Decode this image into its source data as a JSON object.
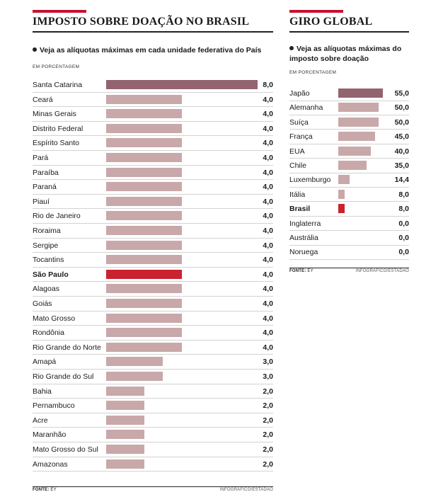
{
  "chart_data": [
    {
      "type": "bar",
      "orientation": "horizontal",
      "title": "IMPOSTO SOBRE DOAÇÃO NO BRASIL",
      "subtitle": "Veja as alíquotas máximas em cada unidade federativa do País",
      "unit": "EM PORCENTAGEM",
      "source_label": "FONTE:",
      "source": "EY",
      "credit": "INFOGRÁFICO/ESTADÃO",
      "xlim": [
        0,
        8
      ],
      "highlight": "São Paulo",
      "top_item": "Santa Catarina",
      "colors": {
        "top": "#93636f",
        "highlight": "#c8232f",
        "default": "#c9a8aa"
      },
      "categories": [
        "Santa Catarina",
        "Ceará",
        "Minas Gerais",
        "Distrito Federal",
        "Espírito Santo",
        "Pará",
        "Paraíba",
        "Paraná",
        "Piauí",
        "Rio de Janeiro",
        "Roraima",
        "Sergipe",
        "Tocantins",
        "São Paulo",
        "Alagoas",
        "Goiás",
        "Mato Grosso",
        "Rondônia",
        "Rio Grande do Norte",
        "Amapá",
        "Rio Grande do Sul",
        "Bahia",
        "Pernambuco",
        "Acre",
        "Maranhão",
        "Mato Grosso do Sul",
        "Amazonas"
      ],
      "values": [
        8.0,
        4.0,
        4.0,
        4.0,
        4.0,
        4.0,
        4.0,
        4.0,
        4.0,
        4.0,
        4.0,
        4.0,
        4.0,
        4.0,
        4.0,
        4.0,
        4.0,
        4.0,
        4.0,
        3.0,
        3.0,
        2.0,
        2.0,
        2.0,
        2.0,
        2.0,
        2.0
      ],
      "value_labels": [
        "8,0",
        "4,0",
        "4,0",
        "4,0",
        "4,0",
        "4,0",
        "4,0",
        "4,0",
        "4,0",
        "4,0",
        "4,0",
        "4,0",
        "4,0",
        "4,0",
        "4,0",
        "4,0",
        "4,0",
        "4,0",
        "4,0",
        "3,0",
        "3,0",
        "2,0",
        "2,0",
        "2,0",
        "2,0",
        "2,0",
        "2,0"
      ]
    },
    {
      "type": "bar",
      "orientation": "horizontal",
      "title": "GIRO GLOBAL",
      "subtitle": "Veja as alíquotas máximas do imposto sobre doação",
      "unit": "EM PORCENTAGEM",
      "source_label": "FONTE:",
      "source": "EY",
      "credit": "INFOGRÁFICO/ESTADÃO",
      "xlim": [
        0,
        55
      ],
      "highlight": "Brasil",
      "top_item": "Japão",
      "colors": {
        "top": "#93636f",
        "highlight": "#c8232f",
        "default": "#c9a8aa"
      },
      "categories": [
        "Japão",
        "Alemanha",
        "Suíça",
        "França",
        "EUA",
        "Chile",
        "Luxemburgo",
        "Itália",
        "Brasil",
        "Inglaterra",
        "Austrália",
        "Noruega"
      ],
      "values": [
        55.0,
        50.0,
        50.0,
        45.0,
        40.0,
        35.0,
        14.4,
        8.0,
        8.0,
        0.0,
        0.0,
        0.0
      ],
      "value_labels": [
        "55,0",
        "50,0",
        "50,0",
        "45,0",
        "40,0",
        "35,0",
        "14,4",
        "8,0",
        "8,0",
        "0,0",
        "0,0",
        "0,0"
      ]
    }
  ]
}
